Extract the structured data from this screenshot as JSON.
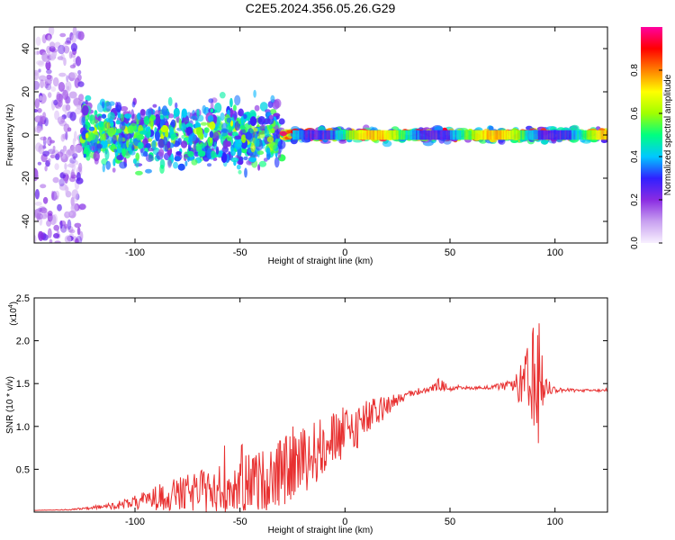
{
  "title": "C2E5.2024.356.05.26.G29",
  "colors": {
    "snr_line": "#e83030",
    "axis": "#000000"
  },
  "chart_data": [
    {
      "type": "heatmap",
      "xlabel": "Height of straight line (km)",
      "ylabel": "Frequency (Hz)",
      "xlim": [
        -148,
        125
      ],
      "ylim": [
        -50,
        50
      ],
      "xticks": [
        "-100",
        "-50",
        "0",
        "50",
        "100"
      ],
      "xtick_values": [
        -100,
        -50,
        0,
        50,
        100
      ],
      "yticks": [
        "40",
        "20",
        "0",
        "-20",
        "-40"
      ],
      "ytick_values": [
        40,
        20,
        0,
        -20,
        -40
      ],
      "colorbar": {
        "label": "Normalized spectral amplitude",
        "range": [
          0,
          1
        ],
        "ticks": [
          "0.0",
          "0.2",
          "0.4",
          "0.6",
          "0.8"
        ],
        "tick_values": [
          0,
          0.2,
          0.4,
          0.6,
          0.8
        ],
        "colormap": [
          "#f8f0ff",
          "#c8a0f0",
          "#8a2be2",
          "#3020ff",
          "#00c8ff",
          "#00ff80",
          "#a0ff00",
          "#ffff00",
          "#ff8000",
          "#ff0000",
          "#ff00a0"
        ]
      },
      "regions": [
        {
          "x_range": [
            -148,
            -125
          ],
          "freq_spread": [
            -50,
            50
          ],
          "amplitude": [
            0.05,
            0.25
          ]
        },
        {
          "x_range": [
            -125,
            -30
          ],
          "freq_spread": [
            -15,
            15
          ],
          "amplitude": [
            0.15,
            0.55
          ]
        },
        {
          "x_range": [
            -30,
            125
          ],
          "freq_spread": [
            -3,
            3
          ],
          "amplitude": [
            0.3,
            0.98
          ]
        }
      ]
    },
    {
      "type": "line",
      "xlabel": "Height of straight line (km)",
      "ylabel": "SNR (10 * v/v)",
      "y_multiplier": "(x10",
      "y_multiplier_exp": "4",
      "xlim": [
        -148,
        125
      ],
      "ylim": [
        0,
        2.5
      ],
      "xticks": [
        "-100",
        "-50",
        "0",
        "50",
        "100"
      ],
      "xtick_values": [
        -100,
        -50,
        0,
        50,
        100
      ],
      "yticks": [
        "2.5",
        "2.0",
        "1.5",
        "1.0",
        "0.5"
      ],
      "ytick_values": [
        2.5,
        2.0,
        1.5,
        1.0,
        0.5
      ],
      "series": [
        {
          "x": [
            -148,
            -130,
            -120,
            -110,
            -100,
            -90,
            -80,
            -70,
            -60,
            -50,
            -40,
            -30,
            -20,
            -10,
            0,
            10,
            20,
            30,
            40,
            45,
            50,
            60,
            70,
            80,
            85,
            90,
            92,
            95,
            100,
            110,
            125
          ],
          "y": [
            0.02,
            0.03,
            0.05,
            0.08,
            0.12,
            0.18,
            0.22,
            0.26,
            0.3,
            0.35,
            0.4,
            0.5,
            0.65,
            0.8,
            0.95,
            1.1,
            1.25,
            1.38,
            1.43,
            1.5,
            1.44,
            1.45,
            1.46,
            1.48,
            1.5,
            1.45,
            1.55,
            1.48,
            1.43,
            1.42,
            1.42
          ],
          "spread": [
            0.0,
            0.01,
            0.02,
            0.05,
            0.1,
            0.18,
            0.25,
            0.3,
            0.35,
            0.42,
            0.45,
            0.5,
            0.5,
            0.45,
            0.4,
            0.3,
            0.15,
            0.05,
            0.03,
            0.1,
            0.03,
            0.02,
            0.03,
            0.08,
            0.4,
            1.05,
            0.9,
            0.2,
            0.04,
            0.02,
            0.02
          ]
        }
      ]
    }
  ]
}
